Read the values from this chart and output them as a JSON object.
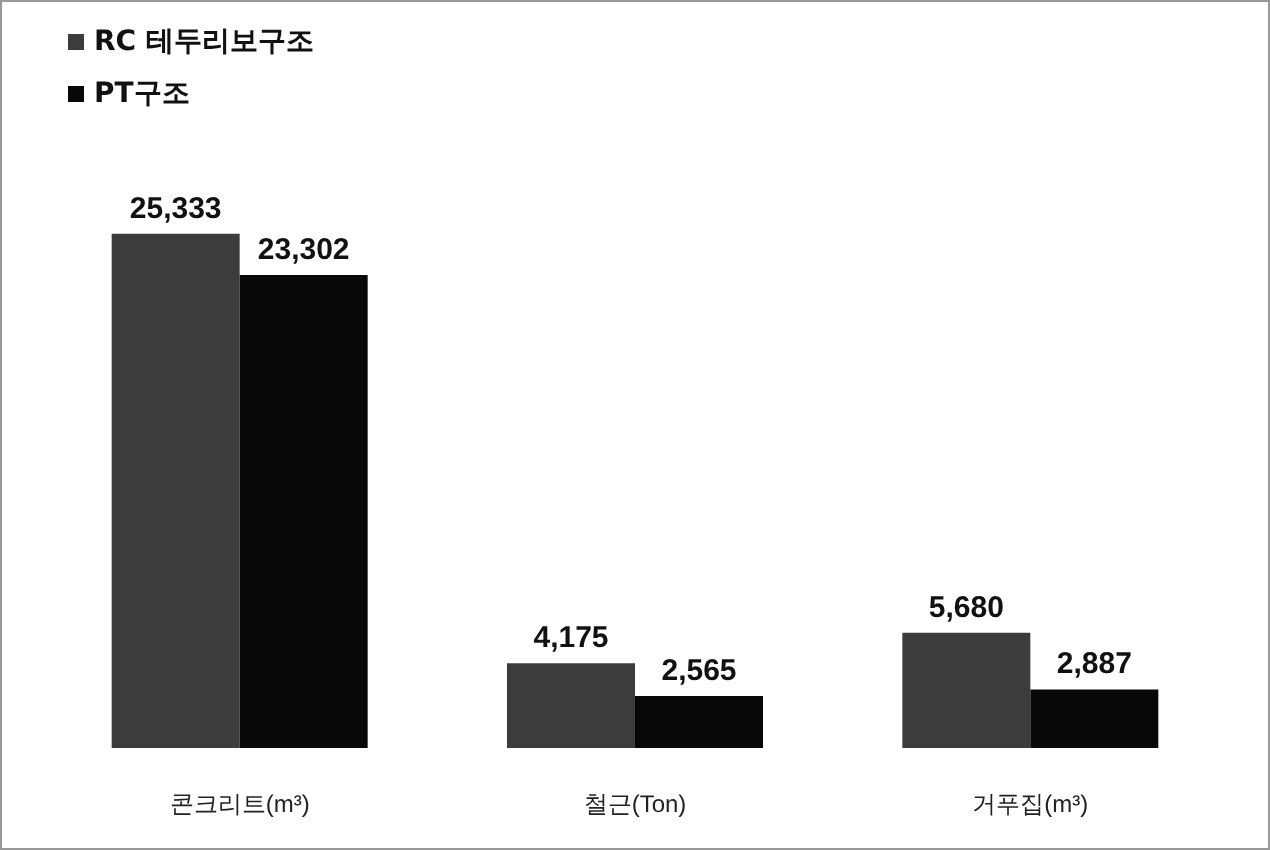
{
  "chart_data": {
    "type": "bar",
    "categories": [
      "콘크리트(m³)",
      "철근(Ton)",
      "거푸집(m³)"
    ],
    "series": [
      {
        "name": "RC 테두리보구조",
        "color": "#3c3c3c",
        "values": [
          25333,
          4175,
          5680
        ],
        "value_labels": [
          "25,333",
          "4,175",
          "5,680"
        ]
      },
      {
        "name": "PT구조",
        "color": "#080808",
        "values": [
          23302,
          2565,
          2887
        ],
        "value_labels": [
          "23,302",
          "2,565",
          "2,887"
        ]
      }
    ],
    "legend": "top left"
  }
}
